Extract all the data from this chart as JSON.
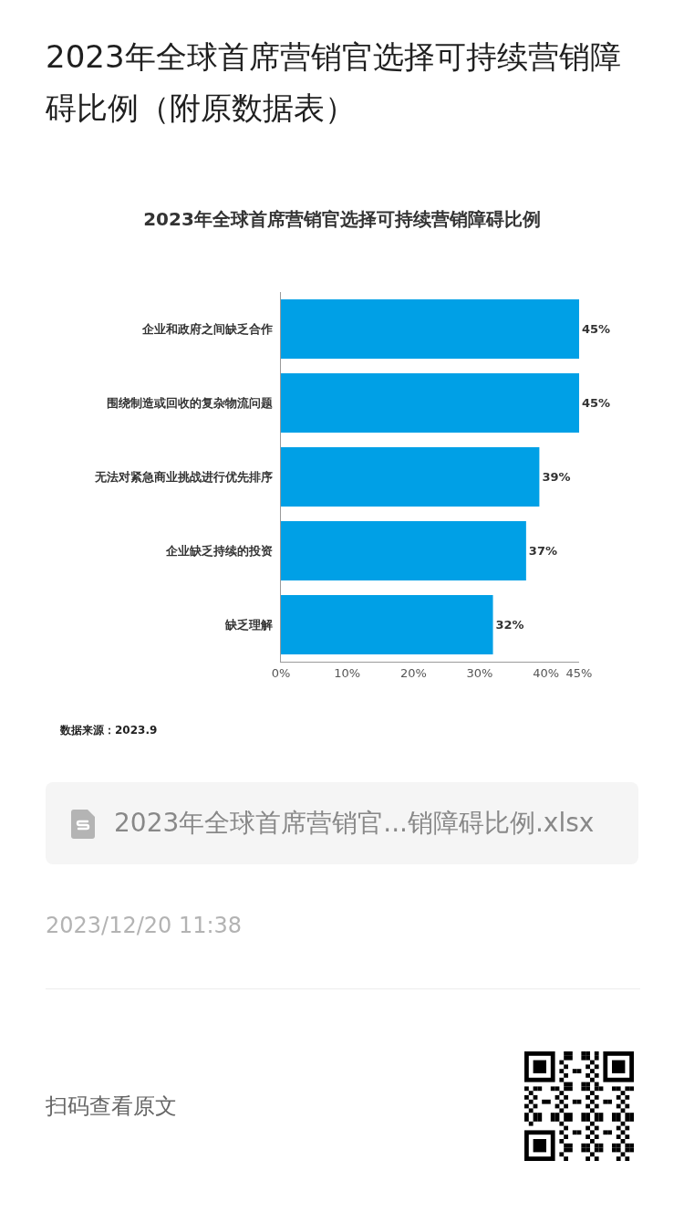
{
  "chart_data": {
    "type": "bar",
    "orientation": "horizontal",
    "title": "2023年全球首席营销官选择可持续营销障碍比例（附原数据表）",
    "subtitle": "2023年全球首席营销官选择可持续营销障碍比例",
    "categories": [
      "企业和政府之间缺乏合作",
      "围绕制造或回收的复杂物流问题",
      "无法对紧急商业挑战进行优先排序",
      "企业缺乏持续的投资",
      "缺乏理解"
    ],
    "values": [
      45,
      45,
      39,
      37,
      32
    ],
    "value_labels": [
      "45%",
      "45%",
      "39%",
      "37%",
      "32%"
    ],
    "color": "#00a0e6",
    "xlim": [
      0,
      45
    ],
    "xticks": [
      {
        "value": 0,
        "label": "0%"
      },
      {
        "value": 10,
        "label": "10%"
      },
      {
        "value": 20,
        "label": "20%"
      },
      {
        "value": 30,
        "label": "30%"
      },
      {
        "value": 40,
        "label": "40%"
      },
      {
        "value": 45,
        "label": "45%"
      }
    ],
    "annotations": [
      "数据来源：2023.9",
      "2023年全球首席营销官...销障碍比例.xlsx",
      "2023/12/20 11:38",
      "扫码查看原文"
    ]
  }
}
